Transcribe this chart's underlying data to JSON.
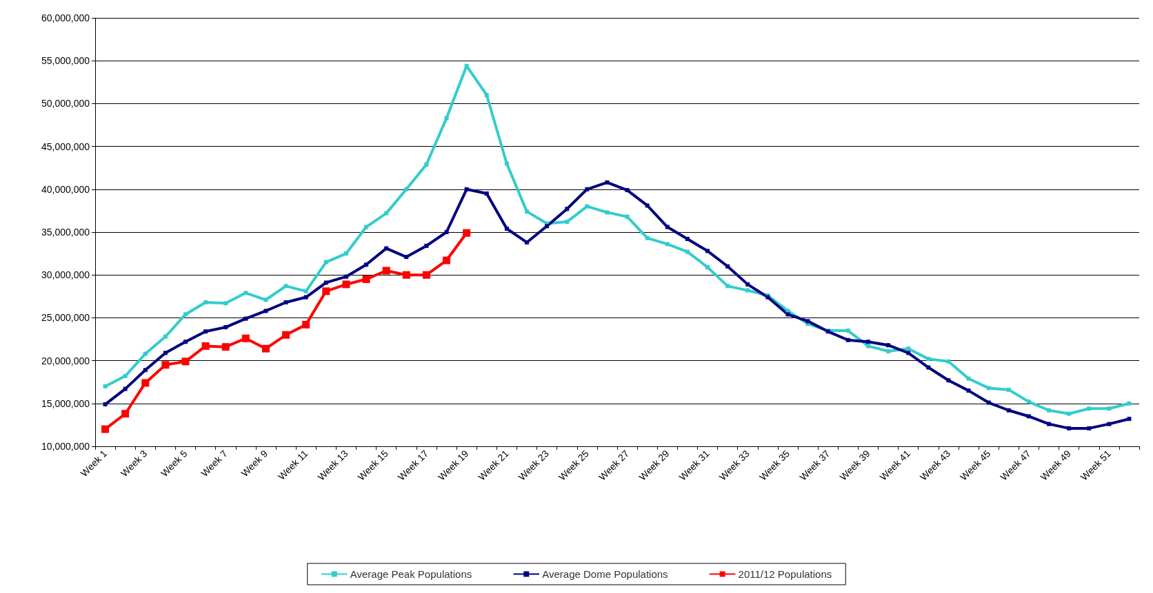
{
  "chart_data": {
    "type": "line",
    "categories": [
      "Week 1",
      null,
      "Week 3",
      null,
      "Week 5",
      null,
      "Week 7",
      null,
      "Week 9",
      null,
      "Week 11",
      null,
      "Week 13",
      null,
      "Week 15",
      null,
      "Week 17",
      null,
      "Week 19",
      null,
      "Week 21",
      null,
      "Week 23",
      null,
      "Week 25",
      null,
      "Week 27",
      null,
      "Week 29",
      null,
      "Week 31",
      null,
      "Week 33",
      null,
      "Week 35",
      null,
      "Week 37",
      null,
      "Week 39",
      null,
      "Week 41",
      null,
      "Week 43",
      null,
      "Week 45",
      null,
      "Week 47",
      null,
      "Week 49",
      null,
      "Week 51",
      null
    ],
    "series": [
      {
        "name": "Average Peak Populations",
        "color": "#33cccc",
        "values": [
          17000000,
          18200000,
          20800000,
          22800000,
          25400000,
          26800000,
          26700000,
          27900000,
          27100000,
          28700000,
          28100000,
          31500000,
          32500000,
          35600000,
          37200000,
          40000000,
          42900000,
          48300000,
          54400000,
          51000000,
          43000000,
          37400000,
          36000000,
          36200000,
          38000000,
          37300000,
          36800000,
          34300000,
          33600000,
          32700000,
          30900000,
          28700000,
          28200000,
          27600000,
          25800000,
          24300000,
          23500000,
          23500000,
          21700000,
          21100000,
          21400000,
          20200000,
          19900000,
          17900000,
          16800000,
          16600000,
          15200000,
          14200000,
          13800000,
          14400000,
          14400000,
          15000000
        ]
      },
      {
        "name": "Average Dome Populations",
        "color": "#000080",
        "values": [
          14900000,
          16700000,
          18900000,
          20900000,
          22200000,
          23400000,
          23900000,
          24900000,
          25800000,
          26800000,
          27400000,
          29100000,
          29800000,
          31200000,
          33100000,
          32100000,
          33400000,
          35000000,
          40000000,
          39500000,
          35400000,
          33800000,
          35700000,
          37700000,
          40000000,
          40800000,
          39900000,
          38100000,
          35600000,
          34200000,
          32800000,
          31000000,
          28900000,
          27400000,
          25400000,
          24600000,
          23400000,
          22400000,
          22200000,
          21800000,
          20900000,
          19200000,
          17700000,
          16500000,
          15100000,
          14200000,
          13500000,
          12600000,
          12100000,
          12100000,
          12600000,
          13200000
        ]
      },
      {
        "name": "2011/12 Populations",
        "color": "#ff0000",
        "values": [
          12000000,
          13800000,
          17400000,
          19500000,
          19900000,
          21700000,
          21600000,
          22600000,
          21400000,
          23000000,
          24200000,
          28100000,
          28900000,
          29500000,
          30500000,
          30000000,
          30000000,
          31700000,
          34900000,
          null,
          null,
          null,
          null,
          null,
          null,
          null,
          null,
          null,
          null,
          null,
          null,
          null,
          null,
          null,
          null,
          null,
          null,
          null,
          null,
          null,
          null,
          null,
          null,
          null,
          null,
          null,
          null,
          null,
          null,
          null,
          null,
          null
        ]
      }
    ],
    "ylim": [
      10000000,
      60000000
    ],
    "yticks": [
      {
        "value": 10000000,
        "label": "10,000,000"
      },
      {
        "value": 15000000,
        "label": "15,000,000"
      },
      {
        "value": 20000000,
        "label": "20,000,000"
      },
      {
        "value": 25000000,
        "label": "25,000,000"
      },
      {
        "value": 30000000,
        "label": "30,000,000"
      },
      {
        "value": 35000000,
        "label": "35,000,000"
      },
      {
        "value": 40000000,
        "label": "40,000,000"
      },
      {
        "value": 45000000,
        "label": "45,000,000"
      },
      {
        "value": 50000000,
        "label": "50,000,000"
      },
      {
        "value": 55000000,
        "label": "55,000,000"
      },
      {
        "value": 60000000,
        "label": "60,000,000"
      }
    ],
    "grid": "y",
    "legend": "bottom",
    "marker": "square",
    "line_style": "solid"
  }
}
